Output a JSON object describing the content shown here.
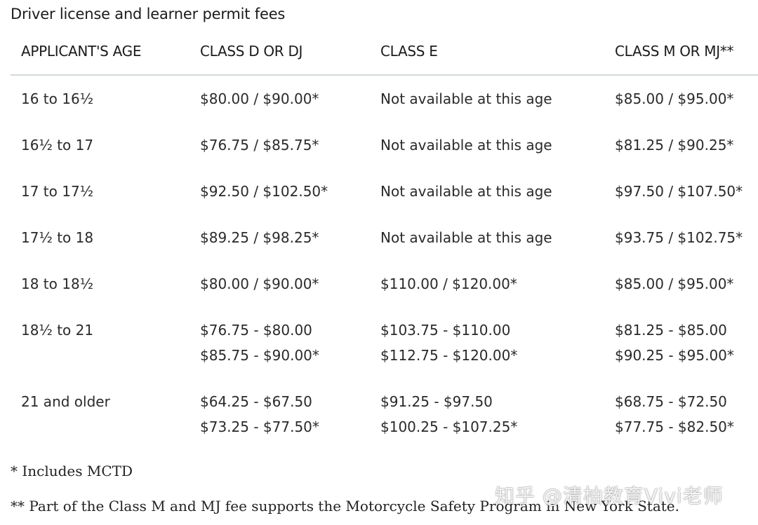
{
  "caption": "Driver license and learner permit fees",
  "table": {
    "headers": [
      "APPLICANT'S AGE",
      "CLASS D OR DJ",
      "CLASS E",
      "CLASS M OR MJ**"
    ],
    "rows": [
      {
        "age": [
          "16 to 16½"
        ],
        "class_d": [
          "$80.00 / $90.00*"
        ],
        "class_e": [
          "Not available at this age"
        ],
        "class_m": [
          "$85.00 / $95.00*"
        ]
      },
      {
        "age": [
          "16½ to 17"
        ],
        "class_d": [
          "$76.75 / $85.75*"
        ],
        "class_e": [
          "Not available at this age"
        ],
        "class_m": [
          "$81.25 / $90.25*"
        ]
      },
      {
        "age": [
          "17 to 17½"
        ],
        "class_d": [
          "$92.50 / $102.50*"
        ],
        "class_e": [
          "Not available at this age"
        ],
        "class_m": [
          "$97.50 / $107.50*"
        ]
      },
      {
        "age": [
          "17½ to 18"
        ],
        "class_d": [
          "$89.25 / $98.25*"
        ],
        "class_e": [
          "Not available at this age"
        ],
        "class_m": [
          "$93.75 / $102.75*"
        ]
      },
      {
        "age": [
          "18 to 18½"
        ],
        "class_d": [
          "$80.00 / $90.00*"
        ],
        "class_e": [
          "$110.00 / $120.00*"
        ],
        "class_m": [
          "$85.00 / $95.00*"
        ]
      },
      {
        "age": [
          "18½ to 21"
        ],
        "class_d": [
          "$76.75 - $80.00",
          "$85.75 - $90.00*"
        ],
        "class_e": [
          "$103.75 - $110.00",
          "$112.75 - $120.00*"
        ],
        "class_m": [
          "$81.25 - $85.00",
          "$90.25 - $95.00*"
        ]
      },
      {
        "age": [
          "21 and older"
        ],
        "class_d": [
          "$64.25 - $67.50",
          "$73.25 - $77.50*"
        ],
        "class_e": [
          "$91.25 - $97.50",
          "$100.25 - $107.25*"
        ],
        "class_m": [
          "$68.75 - $72.50",
          "$77.75 - $82.50*"
        ]
      }
    ]
  },
  "footnotes": [
    "* Includes MCTD",
    "** Part of the Class M and MJ fee supports the Motorcycle Safety Program in New York State."
  ],
  "watermark": "知乎 @清柚教育Vivi老师"
}
